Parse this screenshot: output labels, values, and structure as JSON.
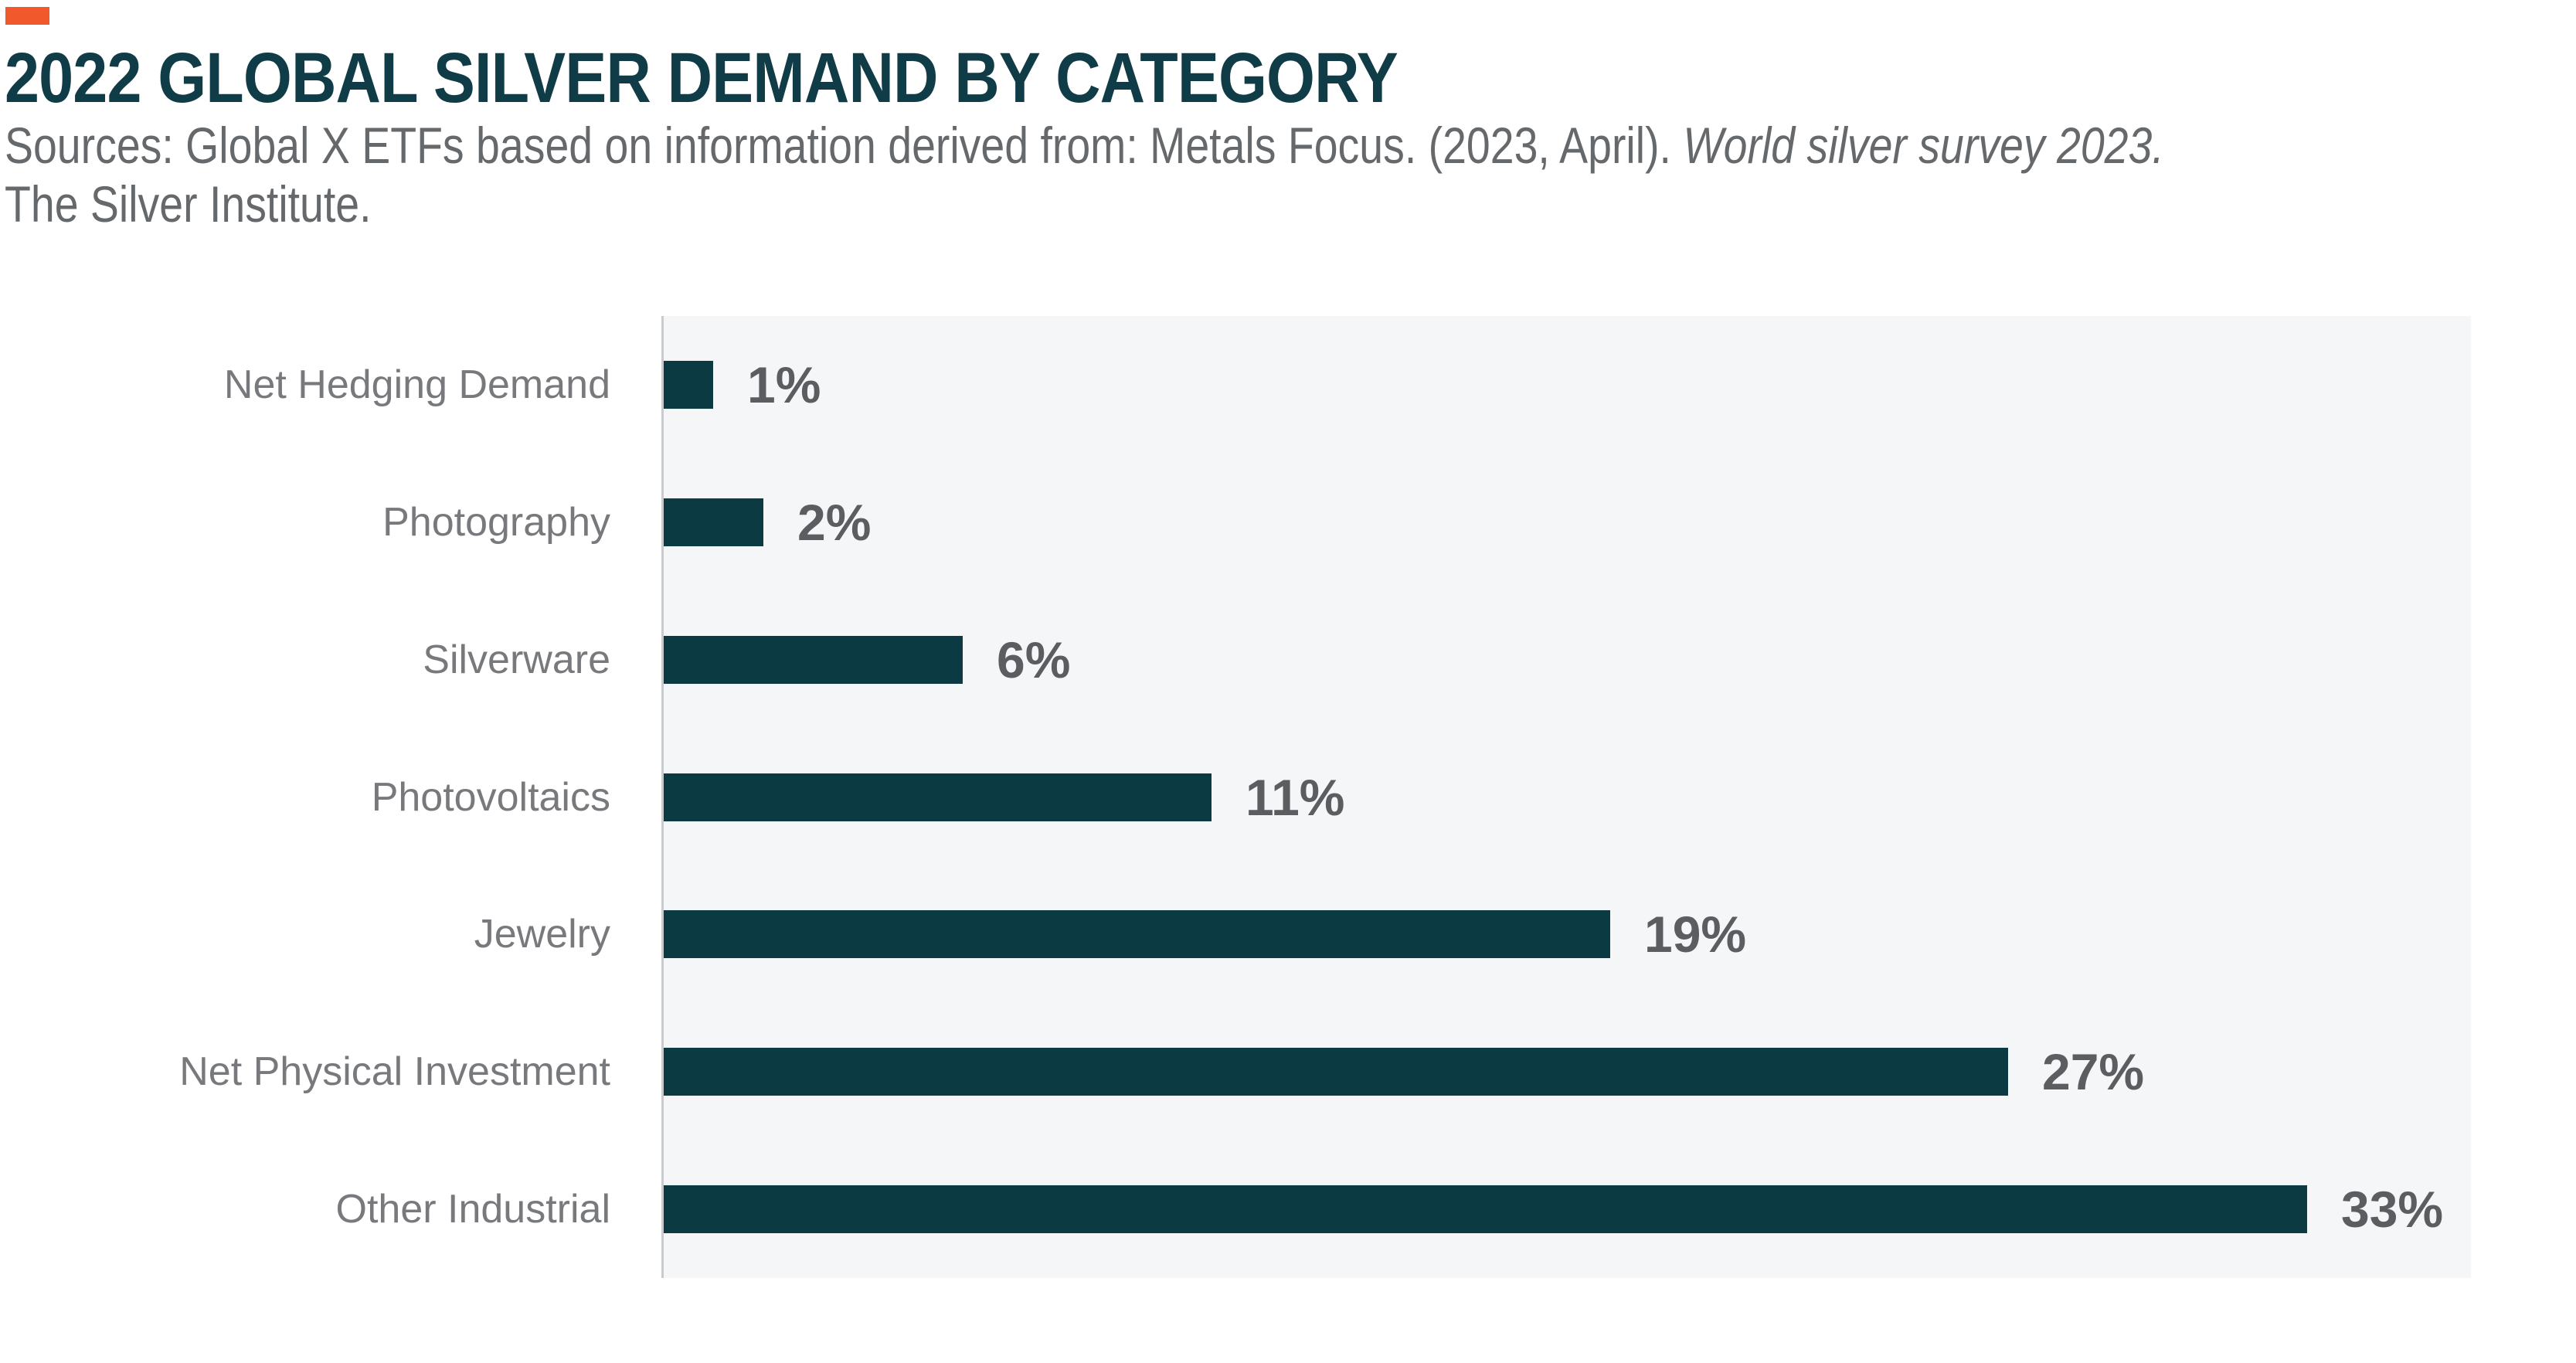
{
  "header": {
    "accent_color": "#F1582B",
    "title": "2022 GLOBAL SILVER DEMAND BY CATEGORY",
    "source_prefix": "Sources: Global X ETFs based on information derived from: Metals Focus. (2023, April). ",
    "source_italic": "World silver survey 2023.",
    "source_line2": "The Silver Institute."
  },
  "chart_data": {
    "type": "bar",
    "orientation": "horizontal",
    "title": "2022 GLOBAL SILVER DEMAND BY CATEGORY",
    "categories": [
      "Net Hedging Demand",
      "Photography",
      "Silverware",
      "Photovoltaics",
      "Jewelry",
      "Net Physical Investment",
      "Other Industrial"
    ],
    "values": [
      1,
      2,
      6,
      11,
      19,
      27,
      33
    ],
    "value_labels": [
      "1%",
      "2%",
      "6%",
      "11%",
      "19%",
      "27%",
      "33%"
    ],
    "xlabel": "",
    "ylabel": "",
    "xlim": [
      0,
      36.3
    ],
    "grid": false,
    "legend": "none",
    "value_label_position": "right-of-bar",
    "colors": {
      "bar": "#0C3A43",
      "plot_background": "#F5F6F8",
      "axis_line": "#C9CBCD",
      "category_label": "#77797C",
      "value_label": "#5B5D60",
      "title": "#103C47",
      "source": "#66696C"
    }
  }
}
